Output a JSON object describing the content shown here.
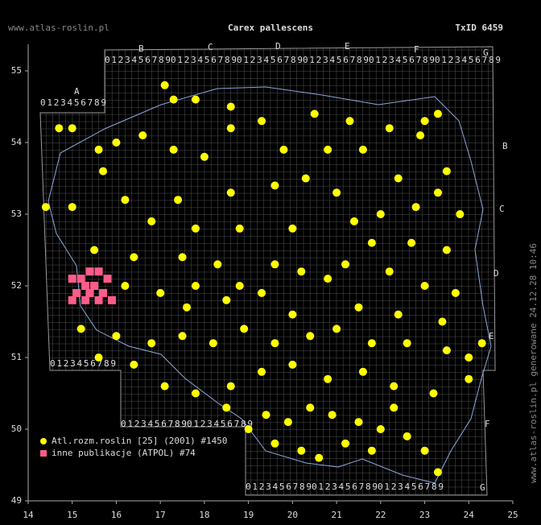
{
  "site": "www.atlas-roslin.pl",
  "taxon_id": "TxID 6459",
  "footer": "www.atlas-roslin.pl generowane 24.12.28 10:46",
  "grid_letters": [
    "A",
    "B",
    "C",
    "D",
    "E",
    "F",
    "G"
  ],
  "grid_digits": "0123456789",
  "chart_data": {
    "type": "scatter",
    "title": "Carex pallescens",
    "xlim": [
      14,
      25
    ],
    "xticks": [
      14,
      15,
      16,
      17,
      18,
      19,
      20,
      21,
      22,
      23,
      24,
      25
    ],
    "ylim": [
      49,
      55
    ],
    "yticks": [
      49,
      50,
      51,
      52,
      53,
      54,
      55
    ],
    "series": [
      {
        "name": "Atl.rozm.roslin [25] (2001) #1450",
        "color": "#ffff00",
        "x": [
          17.1,
          17.3,
          17.8,
          18.6,
          18.6,
          19.3,
          20.5,
          21.3,
          22.2,
          23.0,
          23.3,
          22.9,
          16.6,
          16.0,
          15.6,
          17.3,
          18.0,
          19.8,
          20.8,
          21.6,
          22.4,
          23.5,
          23.3,
          22.8,
          23.8,
          21.0,
          19.6,
          18.6,
          17.4,
          16.2,
          15.0,
          14.4,
          16.8,
          17.8,
          18.8,
          20.0,
          21.8,
          22.7,
          23.5,
          15.5,
          16.4,
          17.5,
          18.3,
          19.6,
          20.2,
          20.8,
          21.2,
          22.2,
          23.0,
          23.7,
          16.2,
          17.0,
          17.6,
          18.5,
          19.3,
          20.0,
          21.5,
          22.4,
          23.4,
          15.2,
          16.0,
          16.8,
          17.5,
          18.2,
          18.9,
          19.6,
          20.4,
          21.0,
          21.8,
          22.6,
          23.5,
          24.0,
          15.6,
          16.4,
          17.1,
          17.8,
          18.6,
          19.3,
          20.0,
          20.8,
          21.6,
          22.3,
          23.2,
          24.0,
          19.4,
          19.9,
          20.4,
          20.9,
          21.5,
          22.0,
          22.6,
          23.0,
          19.6,
          20.2,
          20.6,
          21.2,
          21.8,
          22.3,
          18.5,
          19.0,
          23.3,
          17.8,
          18.8,
          22.0,
          20.3,
          21.4,
          15.7,
          14.7,
          15.0,
          24.3
        ],
        "values": [
          54.8,
          54.6,
          54.6,
          54.5,
          54.2,
          54.3,
          54.4,
          54.3,
          54.2,
          54.3,
          54.4,
          54.1,
          54.1,
          54.0,
          53.9,
          53.9,
          53.8,
          53.9,
          53.9,
          53.9,
          53.5,
          53.6,
          53.3,
          53.1,
          53.0,
          53.3,
          53.4,
          53.3,
          53.2,
          53.2,
          53.1,
          53.1,
          52.9,
          52.8,
          52.8,
          52.8,
          52.6,
          52.6,
          52.5,
          52.5,
          52.4,
          52.4,
          52.3,
          52.3,
          52.2,
          52.1,
          52.3,
          52.2,
          52.0,
          51.9,
          52.0,
          51.9,
          51.7,
          51.8,
          51.9,
          51.6,
          51.7,
          51.6,
          51.5,
          51.4,
          51.3,
          51.2,
          51.3,
          51.2,
          51.4,
          51.2,
          51.3,
          51.4,
          51.2,
          51.2,
          51.1,
          51.0,
          51.0,
          50.9,
          50.6,
          50.5,
          50.6,
          50.8,
          50.9,
          50.7,
          50.8,
          50.6,
          50.5,
          50.7,
          50.2,
          50.1,
          50.3,
          50.2,
          50.1,
          50.0,
          49.9,
          49.7,
          49.8,
          49.7,
          49.6,
          49.8,
          49.7,
          50.3,
          50.3,
          50.0,
          49.4,
          52.0,
          52.0,
          53.0,
          53.5,
          52.9,
          53.6,
          54.2,
          54.2,
          51.2
        ]
      },
      {
        "name": "inne publikacje (ATPOL) #74",
        "color": "#ff5c8a",
        "x": [
          15.0,
          15.2,
          15.4,
          15.6,
          15.8,
          15.3,
          15.5,
          15.7,
          15.1,
          15.0,
          15.3,
          15.6,
          15.9,
          15.4
        ],
        "values": [
          52.1,
          52.1,
          52.2,
          52.2,
          52.1,
          52.0,
          52.0,
          51.9,
          51.9,
          51.8,
          51.8,
          51.8,
          51.8,
          51.9
        ]
      }
    ]
  }
}
